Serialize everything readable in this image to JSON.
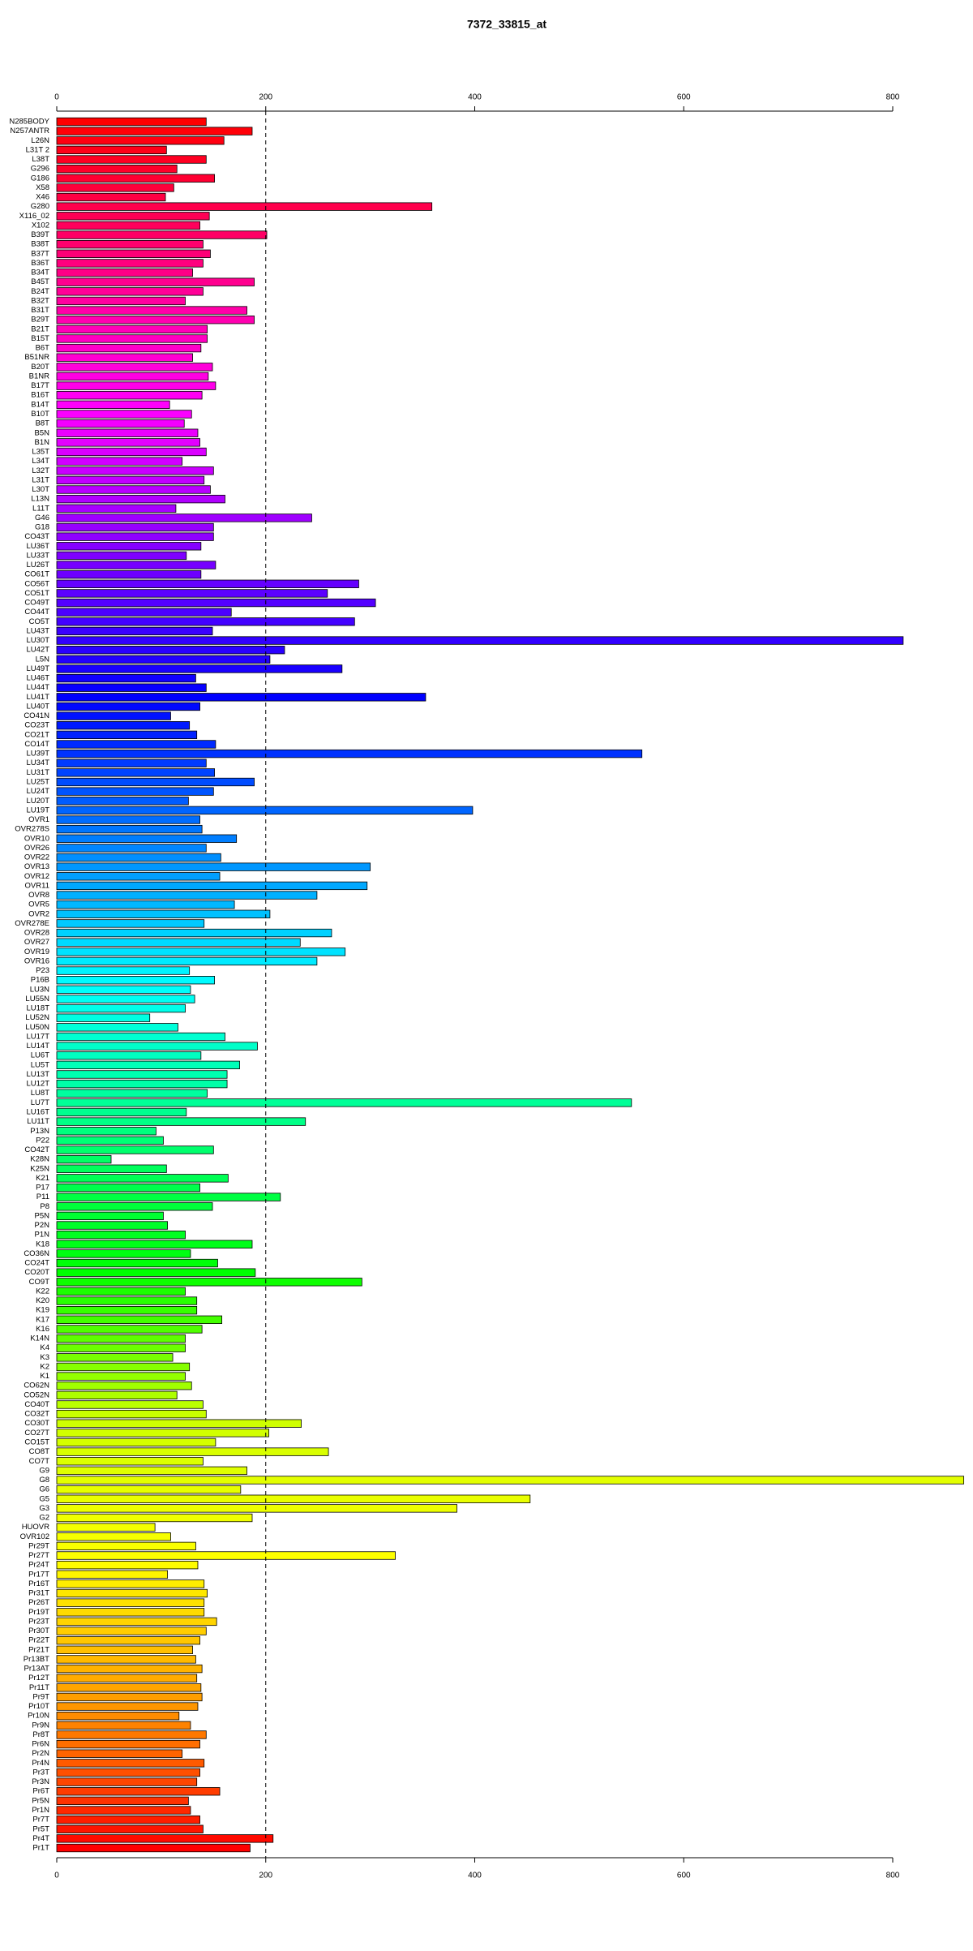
{
  "chart_data": {
    "type": "bar",
    "orientation": "horizontal",
    "title": "7372_33815_at",
    "categories": [
      "N285BODY",
      "N257ANTR",
      "L26N",
      "L31T 2",
      "L38T",
      "G296",
      "G186",
      "X58",
      "X46",
      "G280",
      "X116_02",
      "X102",
      "B39T",
      "B38T",
      "B37T",
      "B36T",
      "B34T",
      "B45T",
      "B24T",
      "B32T",
      "B31T",
      "B29T",
      "B21T",
      "B15T",
      "B6T",
      "B51NR",
      "B20T",
      "B1NR",
      "B17T",
      "B16T",
      "B14T",
      "B10T",
      "B8T",
      "B5N",
      "B1N",
      "L35T",
      "L34T",
      "L32T",
      "L31T",
      "L30T",
      "L13N",
      "L11T",
      "G46",
      "G18",
      "CO43T",
      "LU36T",
      "LU33T",
      "LU26T",
      "CO61T",
      "CO56T",
      "CO51T",
      "CO49T",
      "CO44T",
      "CO5T",
      "LU43T",
      "LU30T",
      "LU42T",
      "L5N",
      "LU49T",
      "LU46T",
      "LU44T",
      "LU41T",
      "LU40T",
      "CO41N",
      "CO23T",
      "CO21T",
      "CO14T",
      "LU39T",
      "LU34T",
      "LU31T",
      "LU25T",
      "LU24T",
      "LU20T",
      "LU19T",
      "OVR1",
      "OVR278S",
      "OVR10",
      "OVR26",
      "OVR22",
      "OVR13",
      "OVR12",
      "OVR11",
      "OVR8",
      "OVR5",
      "OVR2",
      "OVR278E",
      "OVR28",
      "OVR27",
      "OVR19",
      "OVR16",
      "P23",
      "P16B",
      "LU3N",
      "LU55N",
      "LU18T",
      "LU52N",
      "LU50N",
      "LU17T",
      "LU14T",
      "LU6T",
      "LU5T",
      "LU13T",
      "LU12T",
      "LU8T",
      "LU7T",
      "LU16T",
      "LU11T",
      "P13N",
      "P22",
      "CO42T",
      "K28N",
      "K25N",
      "K21",
      "P17",
      "P11",
      "P8",
      "P5N",
      "P2N",
      "P1N",
      "K18",
      "CO36N",
      "CO24T",
      "CO20T",
      "CO9T",
      "K22",
      "K20",
      "K19",
      "K17",
      "K16",
      "K14N",
      "K4",
      "K3",
      "K2",
      "K1",
      "CO62N",
      "CO52N",
      "CO40T",
      "CO32T",
      "CO30T",
      "CO27T",
      "CO15T",
      "CO8T",
      "CO7T",
      "G9",
      "G8",
      "G6",
      "G5",
      "G3",
      "G2",
      "HUOVR",
      "OVR102",
      "Pr29T",
      "Pr27T",
      "Pr24T",
      "Pr17T",
      "Pr16T",
      "Pr31T",
      "Pr26T",
      "Pr19T",
      "Pr23T",
      "Pr30T",
      "Pr22T",
      "Pr21T",
      "Pr13BT",
      "Pr13AT",
      "Pr12T",
      "Pr11T",
      "Pr9T",
      "Pr10T",
      "Pr10N",
      "Pr9N",
      "Pr8T",
      "Pr6N",
      "Pr2N",
      "Pr4N",
      "Pr3T",
      "Pr3N",
      "Pr6T",
      "Pr5N",
      "Pr1N",
      "Pr7T",
      "Pr5T",
      "Pr4T",
      "Pr1T"
    ],
    "values": [
      143,
      187,
      160,
      105,
      143,
      115,
      151,
      112,
      104,
      359,
      146,
      137,
      201,
      140,
      147,
      140,
      130,
      189,
      140,
      123,
      182,
      189,
      144,
      144,
      138,
      130,
      149,
      145,
      152,
      139,
      108,
      129,
      122,
      135,
      137,
      143,
      120,
      150,
      141,
      147,
      161,
      114,
      244,
      150,
      150,
      138,
      124,
      152,
      138,
      289,
      259,
      305,
      167,
      285,
      149,
      810,
      218,
      204,
      273,
      133,
      143,
      353,
      137,
      109,
      127,
      134,
      152,
      560,
      143,
      151,
      189,
      150,
      126,
      398,
      137,
      139,
      172,
      143,
      157,
      300,
      156,
      297,
      249,
      170,
      204,
      141,
      263,
      233,
      276,
      249,
      127,
      151,
      128,
      132,
      123,
      89,
      116,
      161,
      192,
      138,
      175,
      163,
      163,
      144,
      550,
      124,
      238,
      95,
      102,
      150,
      52,
      105,
      164,
      137,
      214,
      149,
      102,
      106,
      123,
      187,
      128,
      154,
      190,
      292,
      123,
      134,
      134,
      158,
      139,
      123,
      123,
      111,
      127,
      123,
      129,
      115,
      140,
      143,
      234,
      203,
      152,
      260,
      140,
      182,
      868,
      176,
      453,
      383,
      187,
      94,
      109,
      133,
      324,
      135,
      106,
      141,
      144,
      141,
      141,
      153,
      143,
      137,
      130,
      133,
      139,
      134,
      138,
      139,
      135,
      117,
      128,
      143,
      137,
      120,
      141,
      137,
      134,
      156,
      126,
      128,
      137,
      140,
      207,
      185
    ],
    "colors": [
      "#ff0000",
      "#ff0080",
      "#ff00ff",
      "#8000ff",
      "#0000ff",
      "#0080ff",
      "#00ffff",
      "#00ff80",
      "#00ff00",
      "#ccff00",
      "#ffff00",
      "#ff9900",
      "#ff0000"
    ],
    "xlim": [
      0,
      800
    ],
    "xticks": [
      0,
      200,
      400,
      600,
      800
    ],
    "reference_line": 200
  }
}
